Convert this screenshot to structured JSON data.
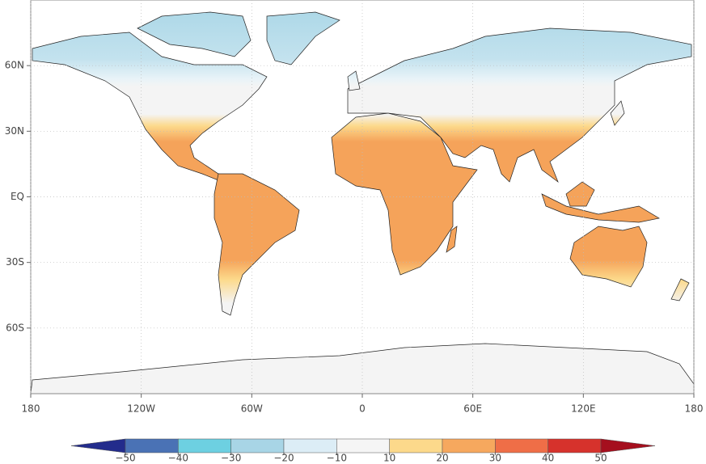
{
  "chart_data": {
    "type": "map",
    "xticks": [
      {
        "value": -180,
        "label": "180"
      },
      {
        "value": -120,
        "label": "120W"
      },
      {
        "value": -60,
        "label": "60W"
      },
      0,
      {
        "value": 60,
        "label": "60E"
      },
      {
        "value": 120,
        "label": "120E"
      },
      180
    ],
    "yticks": [
      {
        "value": 60,
        "label": "60N"
      },
      {
        "value": 30,
        "label": "30N"
      },
      {
        "value": 0,
        "label": "EQ"
      },
      {
        "value": -30,
        "label": "30S"
      },
      {
        "value": -60,
        "label": "60S"
      }
    ],
    "xlim": [
      -180,
      180
    ],
    "ylim": [
      -90,
      90
    ],
    "grid": true,
    "colorbar": {
      "levels": [
        {
          "value": -50,
          "label": "−50"
        },
        {
          "value": -40,
          "label": "−40"
        },
        {
          "value": -30,
          "label": "−30"
        },
        {
          "value": -20,
          "label": "−20"
        },
        {
          "value": -10,
          "label": "−10"
        },
        10,
        20,
        30,
        40,
        50
      ],
      "colors": [
        "#232c8c",
        "#4a72b5",
        "#6dd0e1",
        "#a8d5e6",
        "#dcedf6",
        "#f5f5f5",
        "#fcd98b",
        "#f6a85e",
        "#ef6e47",
        "#d6322c",
        "#a50f1e"
      ]
    }
  }
}
